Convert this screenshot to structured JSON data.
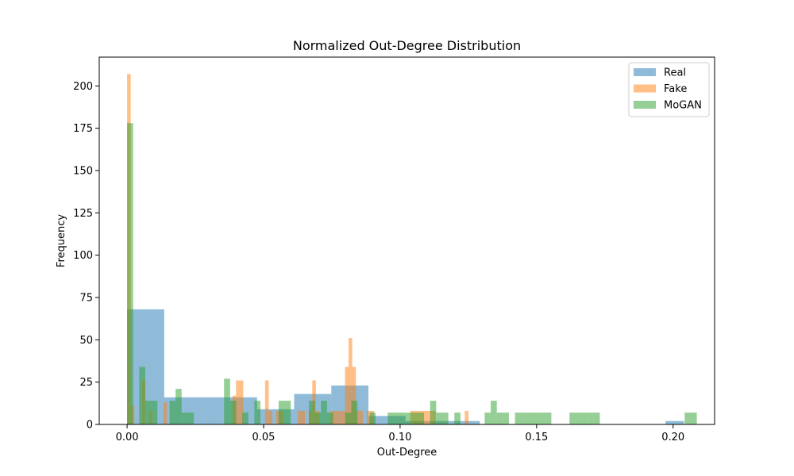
{
  "chart_data": {
    "type": "histogram",
    "title": "Normalized Out-Degree Distribution",
    "xlabel": "Out-Degree",
    "ylabel": "Frequency",
    "xlim": [
      -0.0102,
      0.2152
    ],
    "ylim": [
      0,
      217
    ],
    "xticks": [
      0.0,
      0.05,
      0.1,
      0.15,
      0.2
    ],
    "xtick_labels": [
      "0.00",
      "0.05",
      "0.10",
      "0.15",
      "0.20"
    ],
    "yticks": [
      0,
      25,
      50,
      75,
      100,
      125,
      150,
      175,
      200
    ],
    "ytick_labels": [
      "0",
      "25",
      "50",
      "75",
      "100",
      "125",
      "150",
      "175",
      "200"
    ],
    "legend_position": "top-right",
    "series": [
      {
        "name": "Real",
        "color": "#1f77b4",
        "opacity": 0.5,
        "x_start": 0.0,
        "bin_width": 0.0068,
        "counts": [
          68,
          68,
          16,
          16,
          16,
          16,
          16,
          9,
          9,
          18,
          18,
          23,
          23,
          5,
          5,
          2,
          2,
          2,
          2,
          0,
          0,
          0,
          0,
          0,
          0,
          0,
          0,
          0,
          0,
          2
        ]
      },
      {
        "name": "Fake",
        "color": "#ff7f0e",
        "opacity": 0.5,
        "x_start": 0.0,
        "bin_width": 0.00133,
        "counts": [
          207,
          11,
          0,
          0,
          26,
          0,
          8,
          0,
          0,
          0,
          13,
          0,
          0,
          0,
          0,
          0,
          0,
          0,
          0,
          0,
          0,
          0,
          0,
          0,
          0,
          0,
          0,
          0,
          0,
          17,
          26,
          26,
          0,
          0,
          0,
          0,
          0,
          0,
          26,
          8,
          0,
          8,
          8,
          0,
          0,
          0,
          0,
          8,
          8,
          0,
          8,
          26,
          8,
          0,
          0,
          0,
          8,
          8,
          8,
          8,
          34,
          51,
          34,
          8,
          8,
          0,
          8,
          8,
          0,
          0,
          0,
          0,
          0,
          0,
          0,
          0,
          0,
          0,
          8,
          8,
          8,
          8,
          8,
          8,
          8,
          0,
          0,
          0,
          0,
          0,
          0,
          0,
          0,
          8
        ]
      },
      {
        "name": "MoGAN",
        "color": "#2ca02c",
        "opacity": 0.5,
        "x_start": 0.0,
        "bin_width": 0.00222,
        "counts": [
          178,
          0,
          34,
          14,
          14,
          0,
          0,
          14,
          21,
          7,
          7,
          0,
          0,
          0,
          0,
          0,
          27,
          14,
          0,
          7,
          0,
          14,
          0,
          0,
          0,
          14,
          14,
          0,
          0,
          0,
          14,
          7,
          14,
          7,
          0,
          0,
          7,
          14,
          0,
          0,
          7,
          0,
          0,
          7,
          7,
          7,
          7,
          7,
          7,
          0,
          14,
          7,
          7,
          0,
          7,
          0,
          0,
          0,
          0,
          7,
          14,
          7,
          7,
          0,
          7,
          7,
          7,
          7,
          7,
          7,
          0,
          0,
          0,
          7,
          7,
          7,
          7,
          7,
          0,
          0,
          0,
          0,
          0,
          0,
          0,
          0,
          0,
          0,
          0,
          0,
          0,
          0,
          7,
          7
        ]
      }
    ]
  }
}
